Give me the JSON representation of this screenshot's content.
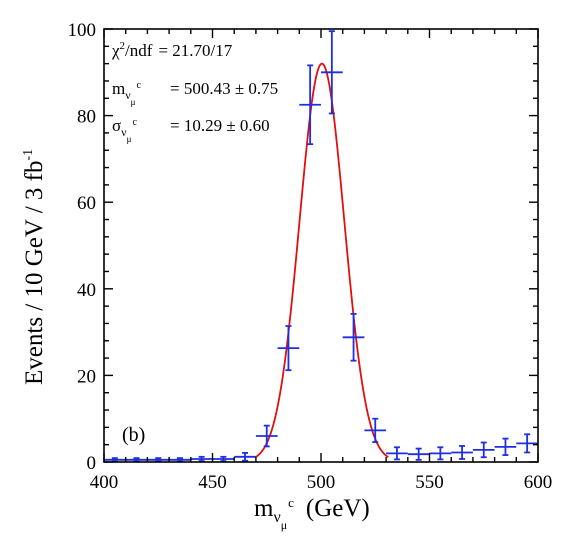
{
  "chart_data": {
    "type": "scatter",
    "panel_label": "(b)",
    "xlabel": {
      "main": "m",
      "sub": "ν",
      "subsub": "μ",
      "sup": "c",
      "units": "(GeV)"
    },
    "ylabel": {
      "main": "Events / 10 GeV / 3 fb",
      "sup": "-1"
    },
    "xlim": [
      400,
      600
    ],
    "ylim": [
      0,
      100
    ],
    "x_ticks": [
      400,
      450,
      500,
      550,
      600
    ],
    "x_tick_labels": [
      "400",
      "450",
      "500",
      "550",
      "600"
    ],
    "y_ticks": [
      0,
      20,
      40,
      60,
      80,
      100
    ],
    "y_tick_labels": [
      "0",
      "20",
      "40",
      "60",
      "80",
      "100"
    ],
    "x_minor_step": 10,
    "y_minor_step": 4,
    "annotations": {
      "chi2_label": "χ",
      "chi2_sup": "2",
      "chi2_rest": "/ndf",
      "chi2_value": "=  21.70/17",
      "mass_label": "m",
      "mass_value": "=   500.43 ± 0.75",
      "sigma_label": "σ",
      "sigma_value": "=   10.29 ± 0.60",
      "sub_nu": "ν",
      "sub_mu": "μ",
      "sup_c": "c"
    },
    "series": [
      {
        "type": "errorbar",
        "color": "#1f2ee0",
        "bin_half_width": 5,
        "points": [
          {
            "x": 405,
            "y": 0.5,
            "yerr": 0.4
          },
          {
            "x": 415,
            "y": 0.5,
            "yerr": 0.4
          },
          {
            "x": 425,
            "y": 0.5,
            "yerr": 0.4
          },
          {
            "x": 435,
            "y": 0.5,
            "yerr": 0.4
          },
          {
            "x": 445,
            "y": 0.7,
            "yerr": 0.5
          },
          {
            "x": 455,
            "y": 0.7,
            "yerr": 0.5
          },
          {
            "x": 465,
            "y": 1.2,
            "yerr": 0.9
          },
          {
            "x": 475,
            "y": 6.0,
            "yerr": 2.4
          },
          {
            "x": 485,
            "y": 26.3,
            "yerr": 5.1
          },
          {
            "x": 495,
            "y": 82.5,
            "yerr": 9.1
          },
          {
            "x": 505,
            "y": 90.0,
            "yerr": 9.5
          },
          {
            "x": 515,
            "y": 28.8,
            "yerr": 5.4
          },
          {
            "x": 525,
            "y": 7.3,
            "yerr": 2.7
          },
          {
            "x": 535,
            "y": 2.0,
            "yerr": 1.4
          },
          {
            "x": 545,
            "y": 1.8,
            "yerr": 1.3
          },
          {
            "x": 555,
            "y": 2.0,
            "yerr": 1.4
          },
          {
            "x": 565,
            "y": 2.2,
            "yerr": 1.5
          },
          {
            "x": 575,
            "y": 2.8,
            "yerr": 1.7
          },
          {
            "x": 585,
            "y": 3.5,
            "yerr": 1.9
          },
          {
            "x": 595,
            "y": 4.3,
            "yerr": 2.1
          }
        ]
      },
      {
        "type": "fit",
        "color": "#e01010",
        "mean": 500.43,
        "sigma": 10.29,
        "amplitude": 92.0,
        "range": [
          470,
          531
        ]
      }
    ],
    "grid": false,
    "legend": "none"
  }
}
